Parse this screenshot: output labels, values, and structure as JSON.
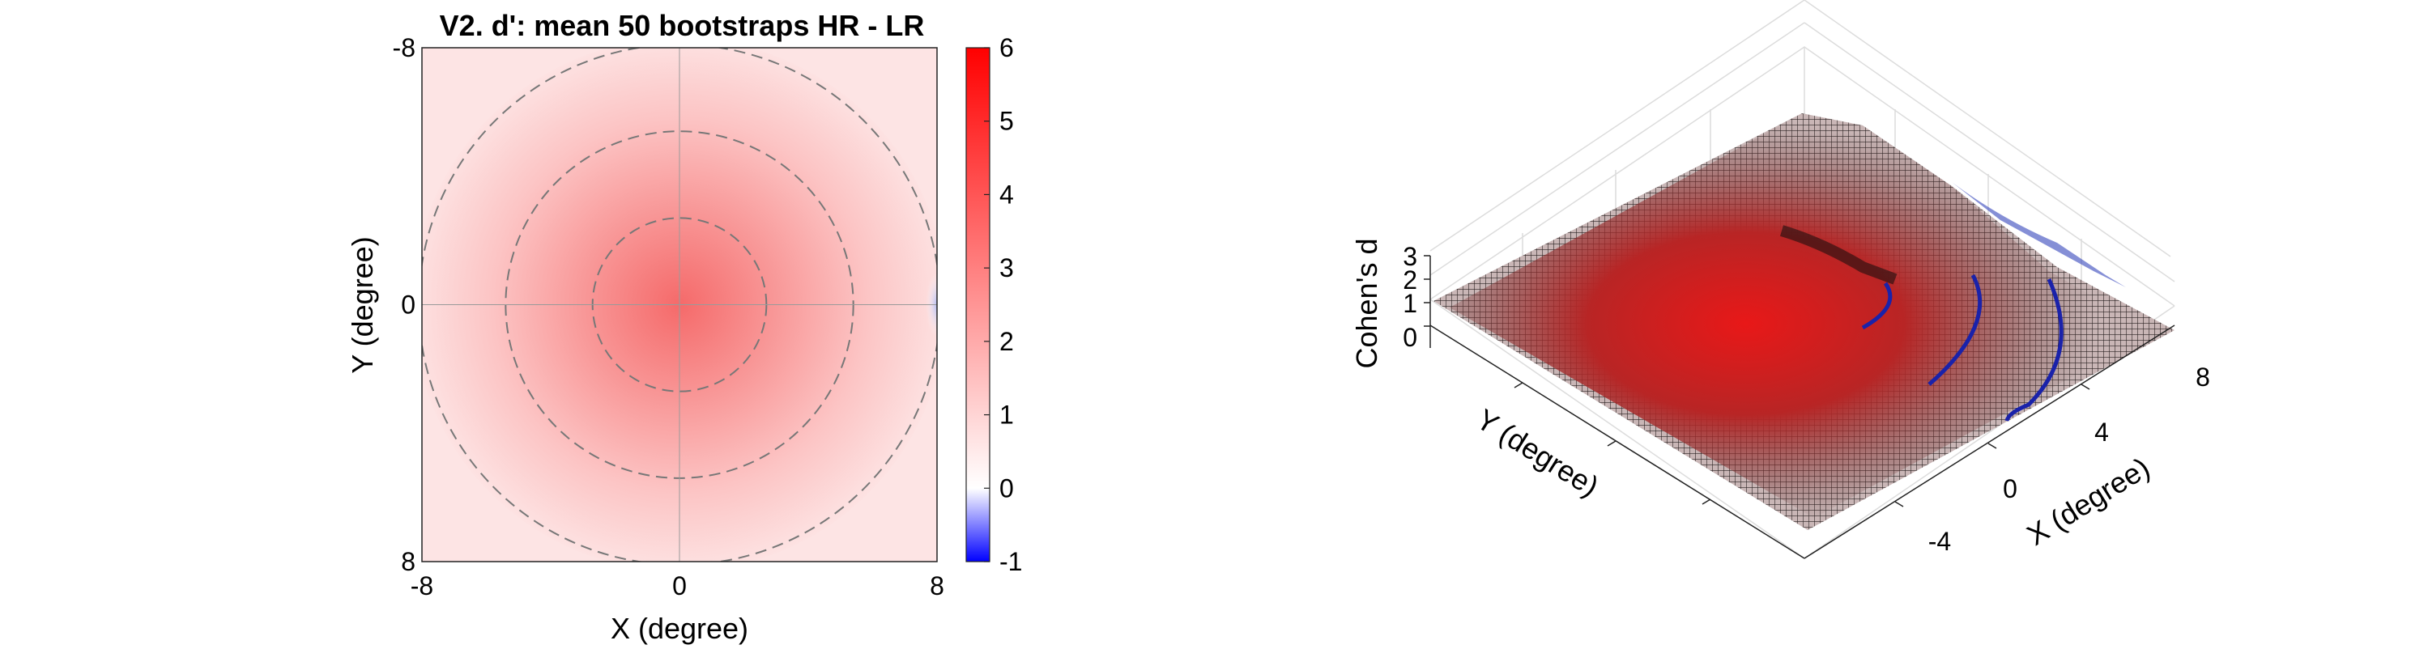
{
  "chart_data": [
    {
      "type": "heatmap",
      "title": "V2. d': mean 50 bootstraps HR - LR",
      "xlabel": "X (degree)",
      "ylabel": "Y (degree)",
      "xlim": [
        -8,
        8
      ],
      "ylim": [
        -8,
        8
      ],
      "y_axis_direction": "reversed",
      "x_ticks": [
        "-8",
        "0",
        "8"
      ],
      "y_ticks": [
        "-8",
        "0",
        "8"
      ],
      "z_description": "d' (HR - LR), peak ≈ 2.5 near center, ≈ 1 at edges, slightly negative at right edge (x ≈ 8, y ≈ 0)",
      "peak": {
        "x": 0,
        "y": 0,
        "value": 2.5
      },
      "grid": true,
      "reference_circles_radius": [
        2.7,
        5.4,
        8.1
      ],
      "colorbar": {
        "limits": [
          -1,
          6
        ],
        "ticks": [
          "6",
          "5",
          "4",
          "3",
          "2",
          "1",
          "0",
          "-1"
        ],
        "colormap": "blue-white-red",
        "low_color": "#0000ff",
        "mid_color": "#ffffff",
        "high_color": "#ff0000",
        "zero_value": 0
      },
      "colors": {
        "dashed_circles": "#777777",
        "crosshair": "#9a9a9a"
      }
    },
    {
      "type": "surface",
      "title": "",
      "xlabel": "X (degree)",
      "ylabel": "Y (degree)",
      "zlabel": "Cohen's d",
      "x_ticks": [
        "-4",
        "0",
        "4",
        "8"
      ],
      "z_ticks": [
        "0",
        "1",
        "2",
        "3"
      ],
      "z_description": "mesh surface of Cohen's d over X/Y, red peak near center, blue where d is negative along one edge, dark blue contour arcs",
      "colors": {
        "mesh": "#000000",
        "peak": "#e01010",
        "negative": "#3040c0",
        "contours": "#1a22aa"
      }
    }
  ]
}
